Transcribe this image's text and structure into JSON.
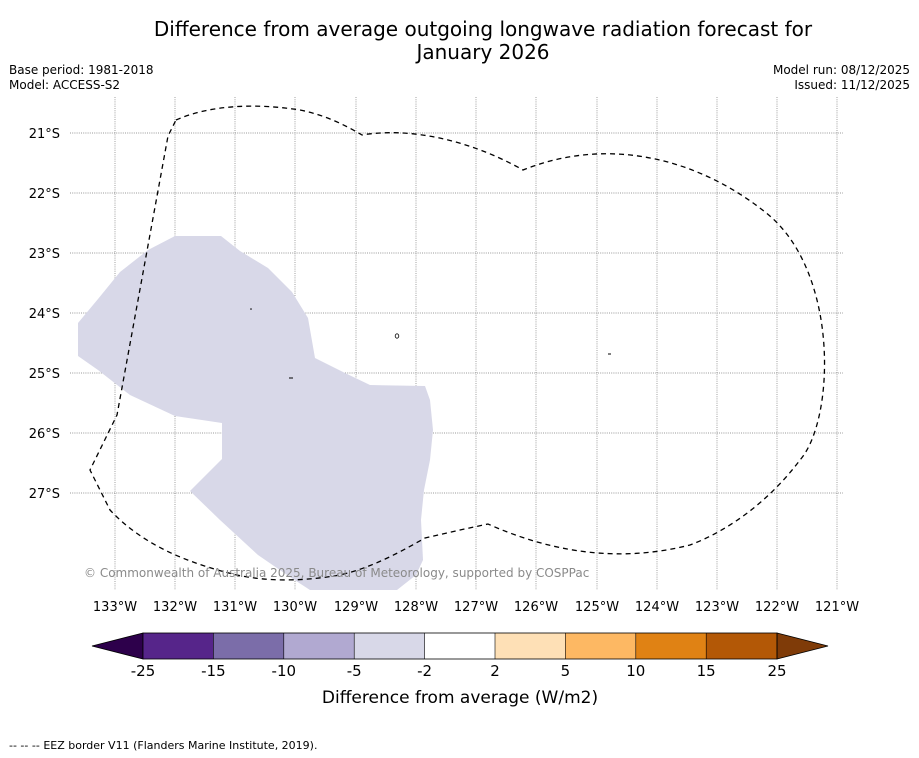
{
  "title": {
    "line1": "Difference from average outgoing longwave radiation forecast for",
    "line2": "January 2026"
  },
  "meta": {
    "base_period": "Base period: 1981-2018",
    "model": "Model: ACCESS-S2",
    "model_run": "Model run: 08/12/2025",
    "issued": "Issued: 11/12/2025"
  },
  "map": {
    "lat_labels": [
      "21°S",
      "22°S",
      "23°S",
      "24°S",
      "25°S",
      "26°S",
      "27°S"
    ],
    "lon_labels": [
      "133°W",
      "132°W",
      "131°W",
      "130°W",
      "129°W",
      "128°W",
      "127°W",
      "126°W",
      "125°W",
      "124°W",
      "123°W",
      "122°W",
      "121°W"
    ],
    "copyright": "© Commonwealth of Australia 2025, Bureau of Meteorology, supported by COSPPac",
    "anomaly_region_color": "#d8d8e8",
    "eez_line_color": "#000000"
  },
  "colorbar": {
    "ticks": [
      "-25",
      "-15",
      "-10",
      "-5",
      "-2",
      "2",
      "5",
      "10",
      "15",
      "25"
    ],
    "colors": [
      "#56258a",
      "#7b6da9",
      "#b1a9d1",
      "#d8d8e8",
      "#ffffff",
      "#fee0b6",
      "#fdb863",
      "#e08214",
      "#b35806"
    ],
    "under_color": "#2d004b",
    "over_color": "#7f3b08",
    "label": "Difference from average (W/m2)"
  },
  "footer": {
    "legend_symbol": "--  --  --",
    "legend_text": "EEZ border V11 (Flanders Marine Institute, 2019)."
  }
}
